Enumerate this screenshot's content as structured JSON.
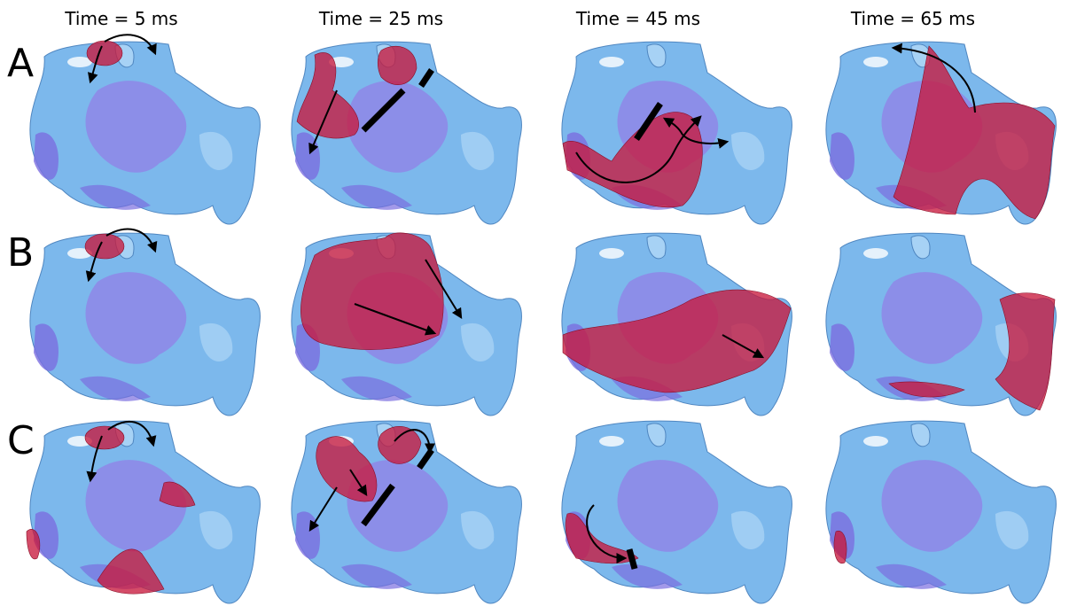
{
  "columns": [
    "Time = 5 ms",
    "Time = 25 ms",
    "Time = 45 ms",
    "Time = 65 ms"
  ],
  "rows": [
    "A",
    "B",
    "C"
  ]
}
